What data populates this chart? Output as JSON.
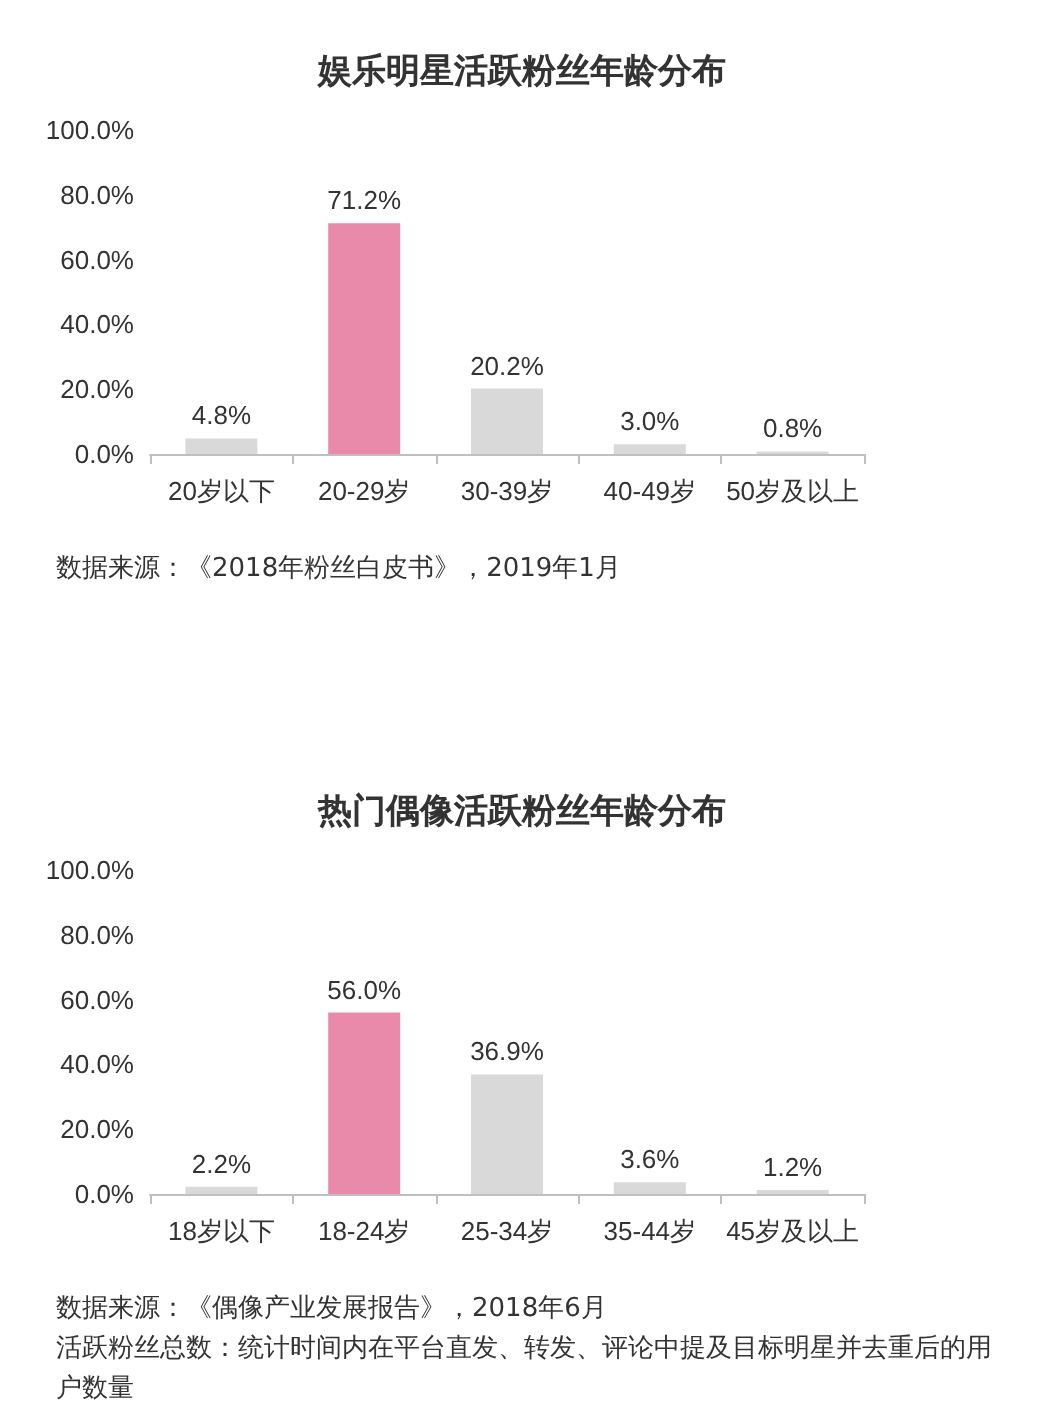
{
  "chart_data": [
    {
      "type": "bar",
      "title": "娱乐明星活跃粉丝年龄分布",
      "categories": [
        "20岁以下",
        "20-29岁",
        "30-39岁",
        "40-49岁",
        "50岁及以上"
      ],
      "values": [
        4.8,
        71.2,
        20.2,
        3.0,
        0.8
      ],
      "colors": [
        "#d9d9d9",
        "#ea8aaa",
        "#d9d9d9",
        "#d9d9d9",
        "#d9d9d9"
      ],
      "value_labels": [
        "4.8%",
        "71.2%",
        "20.2%",
        "3.0%",
        "0.8%"
      ],
      "ylim": [
        0,
        100
      ],
      "yticks": [
        {
          "value": 0,
          "label": "0.0%"
        },
        {
          "value": 20,
          "label": "20.0%"
        },
        {
          "value": 40,
          "label": "40.0%"
        },
        {
          "value": 60,
          "label": "60.0%"
        },
        {
          "value": 80,
          "label": "80.0%"
        },
        {
          "value": 100,
          "label": "100.0%"
        }
      ],
      "grid": false,
      "annotations": [
        "数据来源：《2018年粉丝白皮书》，2019年1月"
      ]
    },
    {
      "type": "bar",
      "title": "热门偶像活跃粉丝年龄分布",
      "categories": [
        "18岁以下",
        "18-24岁",
        "25-34岁",
        "35-44岁",
        "45岁及以上"
      ],
      "values": [
        2.2,
        56.0,
        36.9,
        3.6,
        1.2
      ],
      "colors": [
        "#d9d9d9",
        "#ea8aaa",
        "#d9d9d9",
        "#d9d9d9",
        "#d9d9d9"
      ],
      "value_labels": [
        "2.2%",
        "56.0%",
        "36.9%",
        "3.6%",
        "1.2%"
      ],
      "ylim": [
        0,
        100
      ],
      "yticks": [
        {
          "value": 0,
          "label": "0.0%"
        },
        {
          "value": 20,
          "label": "20.0%"
        },
        {
          "value": 40,
          "label": "40.0%"
        },
        {
          "value": 60,
          "label": "60.0%"
        },
        {
          "value": 80,
          "label": "80.0%"
        },
        {
          "value": 100,
          "label": "100.0%"
        }
      ],
      "grid": false,
      "annotations": [
        "数据来源：《偶像产业发展报告》，2018年6月",
        "活跃粉丝总数：统计时间内在平台直发、转发、评论中提及目标明星并去重后的用户数量"
      ]
    }
  ]
}
